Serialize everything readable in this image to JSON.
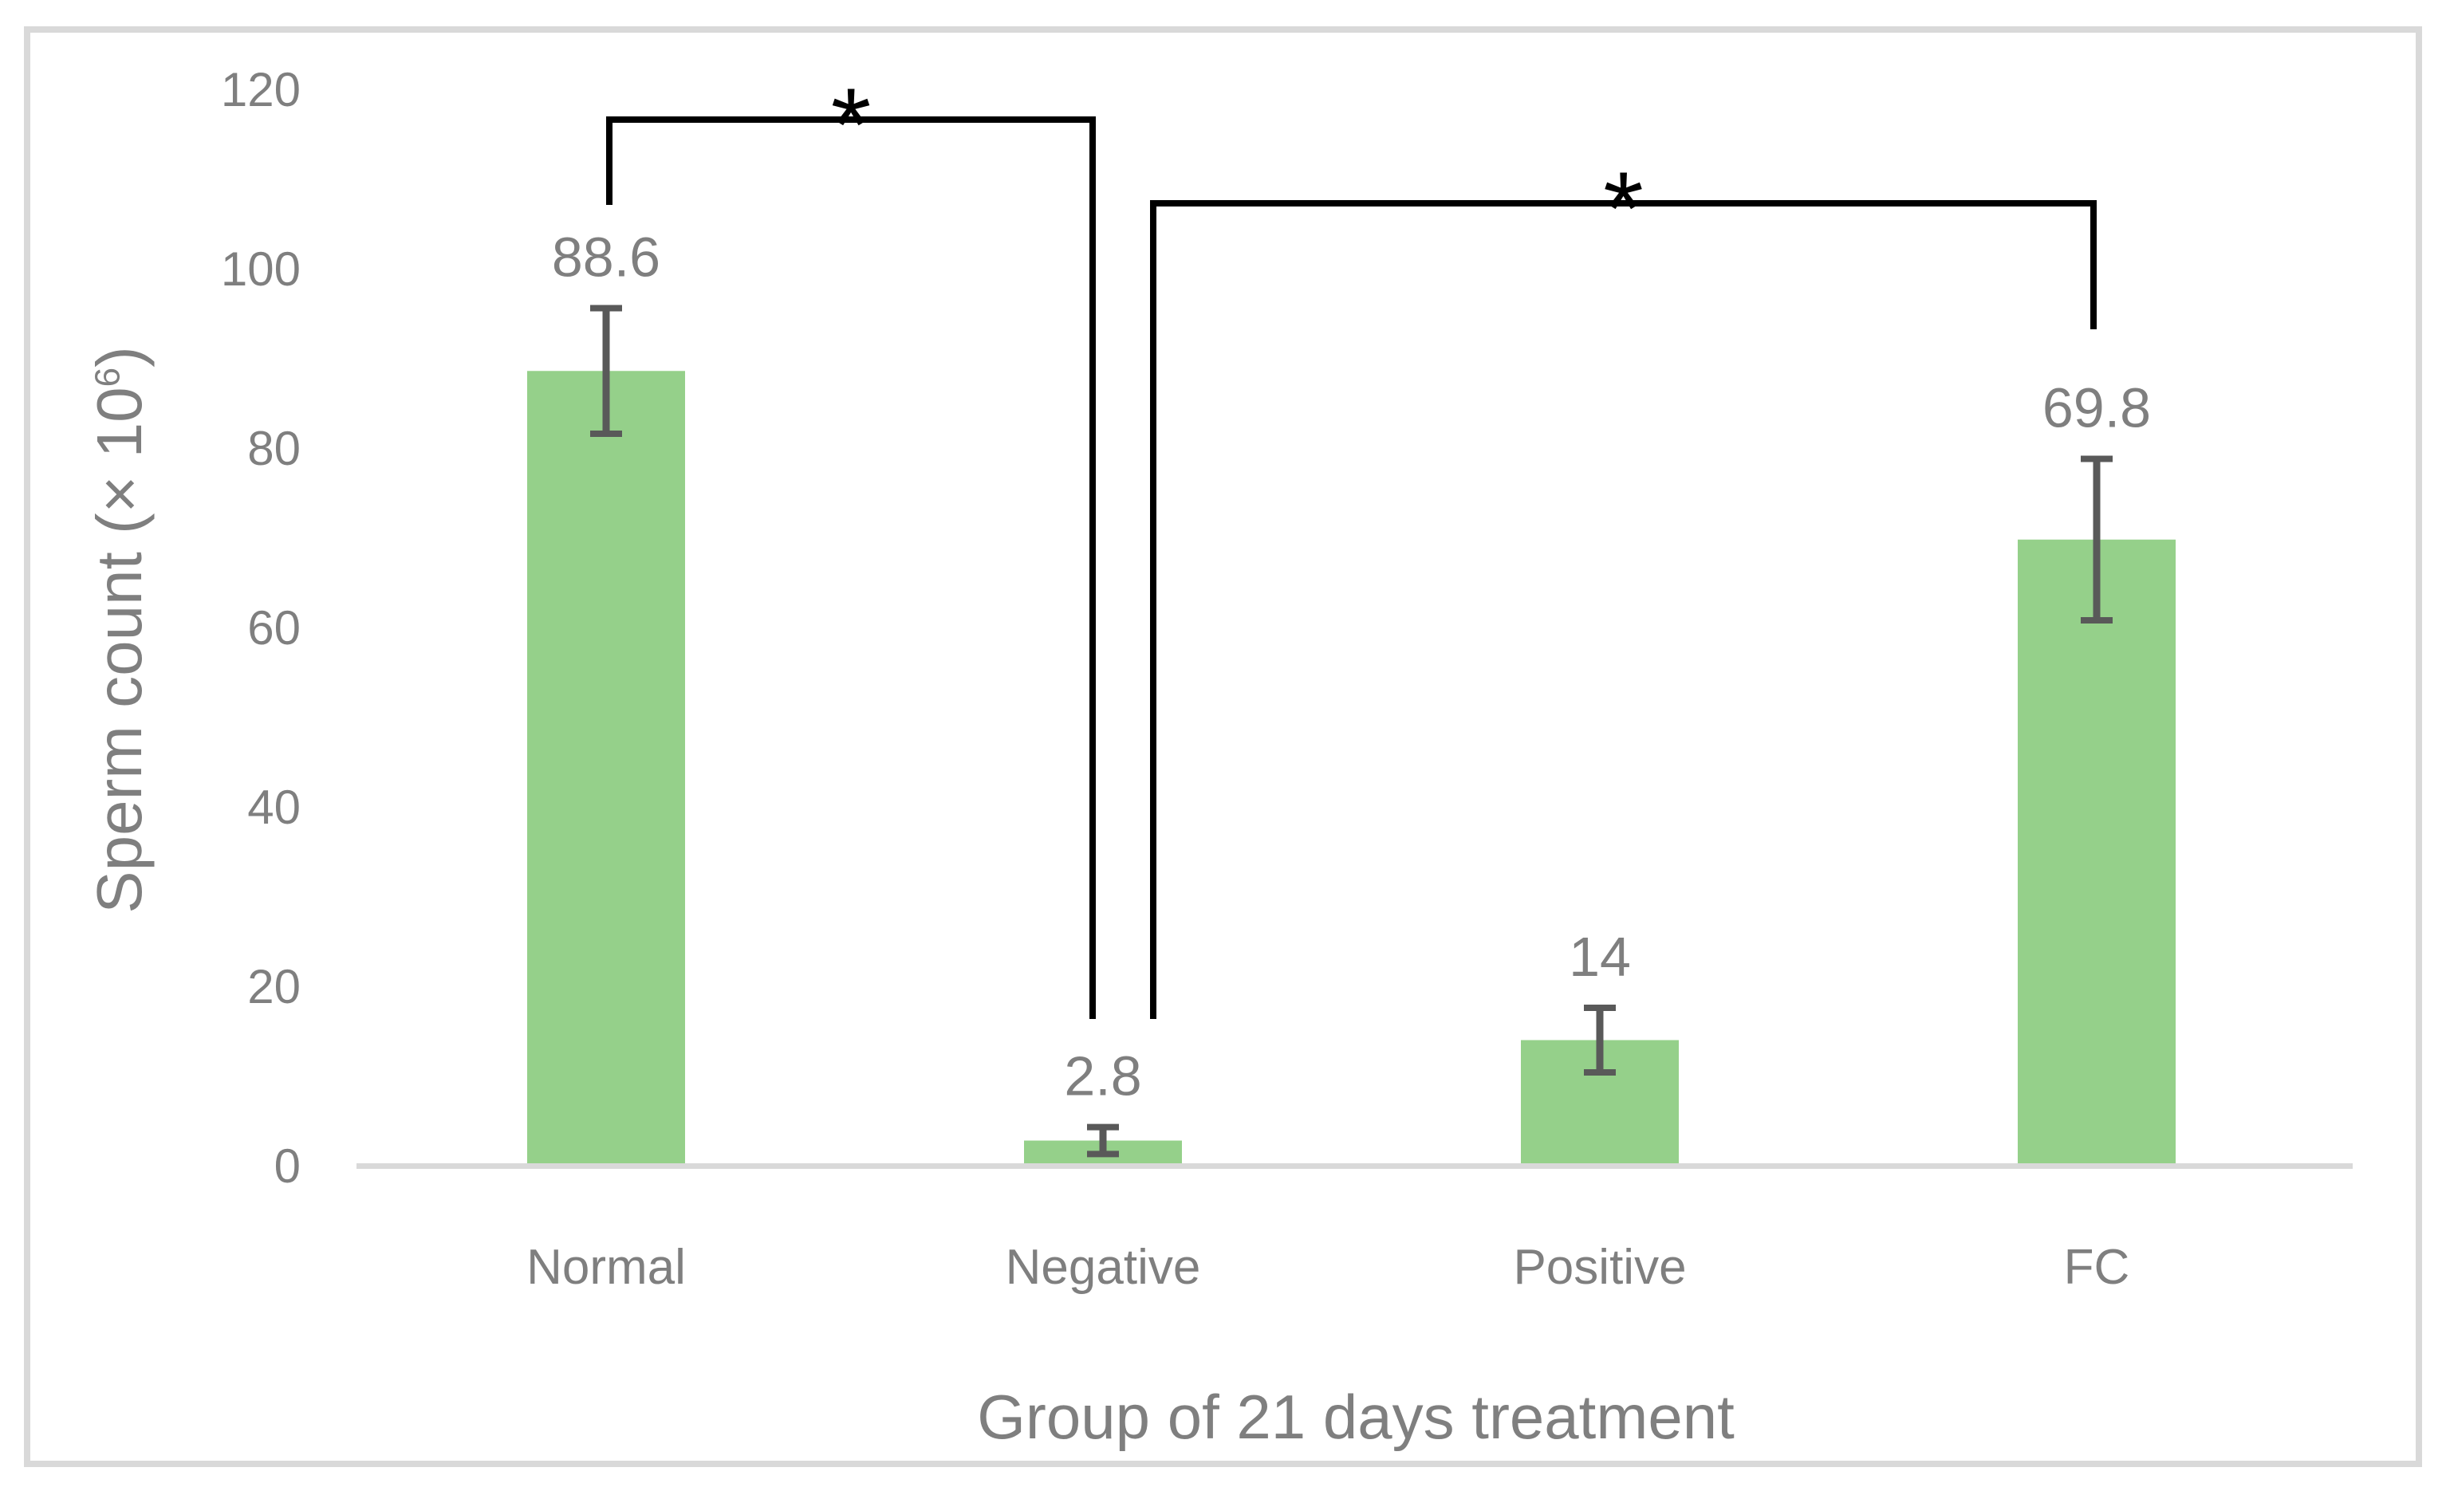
{
  "colors": {
    "bar_fill": "#95D08A",
    "error_bar": "#595959",
    "axis_line": "#D9D9D9",
    "frame_border": "#D9D9D9",
    "text_gray": "#7F7F7F",
    "significance": "#000000",
    "background": "#FFFFFF"
  },
  "y_axis": {
    "title_prefix": "Sperm count (× 10",
    "title_sup": "6",
    "title_suffix": ")",
    "tick_labels": [
      "0",
      "20",
      "40",
      "60",
      "80",
      "100",
      "120"
    ]
  },
  "x_axis": {
    "title": "Group of 21 days treatment"
  },
  "chart_data": {
    "type": "bar",
    "title": "",
    "xlabel": "Group of 21 days treatment",
    "ylabel": "Sperm count (× 10^6)",
    "categories": [
      "Normal",
      "Negative",
      "Positive",
      "FC"
    ],
    "values": [
      88.6,
      2.8,
      14,
      69.8
    ],
    "data_labels": [
      "88.6",
      "2.8",
      "14",
      "69.8"
    ],
    "error_plus": [
      7,
      1.5,
      3.6,
      9
    ],
    "error_minus": [
      7,
      1.5,
      3.6,
      9
    ],
    "ylim": [
      0,
      120
    ],
    "yticks": [
      0,
      20,
      40,
      60,
      80,
      100,
      120
    ],
    "grid": false,
    "legend": false,
    "significance_brackets": [
      {
        "label": "*",
        "from": 0,
        "to": 1
      },
      {
        "label": "*",
        "from": 1,
        "to": 3
      }
    ]
  }
}
